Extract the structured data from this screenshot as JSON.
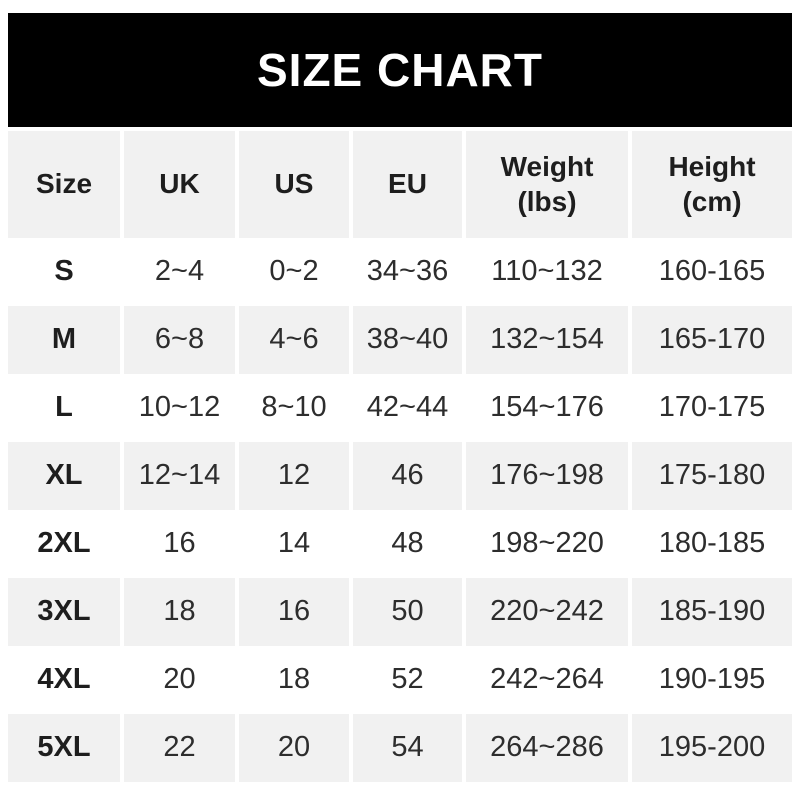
{
  "banner": {
    "title": "SIZE CHART"
  },
  "colors": {
    "banner_bg": "#000000",
    "banner_text": "#ffffff",
    "row_alt_bg": "#f1f1f1",
    "row_bg": "#ffffff",
    "text": "#2d2d2d"
  },
  "table": {
    "header": [
      {
        "label": "Size",
        "sub": ""
      },
      {
        "label": "UK",
        "sub": ""
      },
      {
        "label": "US",
        "sub": ""
      },
      {
        "label": "EU",
        "sub": ""
      },
      {
        "label": "Weight",
        "sub": "(lbs)"
      },
      {
        "label": "Height",
        "sub": "(cm)"
      }
    ]
  },
  "chart_data": {
    "type": "table",
    "title": "SIZE CHART",
    "columns": [
      "Size",
      "UK",
      "US",
      "EU",
      "Weight (lbs)",
      "Height (cm)"
    ],
    "rows": [
      [
        "S",
        "2~4",
        "0~2",
        "34~36",
        "110~132",
        "160-165"
      ],
      [
        "M",
        "6~8",
        "4~6",
        "38~40",
        "132~154",
        "165-170"
      ],
      [
        "L",
        "10~12",
        "8~10",
        "42~44",
        "154~176",
        "170-175"
      ],
      [
        "XL",
        "12~14",
        "12",
        "46",
        "176~198",
        "175-180"
      ],
      [
        "2XL",
        "16",
        "14",
        "48",
        "198~220",
        "180-185"
      ],
      [
        "3XL",
        "18",
        "16",
        "50",
        "220~242",
        "185-190"
      ],
      [
        "4XL",
        "20",
        "18",
        "52",
        "242~264",
        "190-195"
      ],
      [
        "5XL",
        "22",
        "20",
        "54",
        "264~286",
        "195-200"
      ]
    ]
  }
}
